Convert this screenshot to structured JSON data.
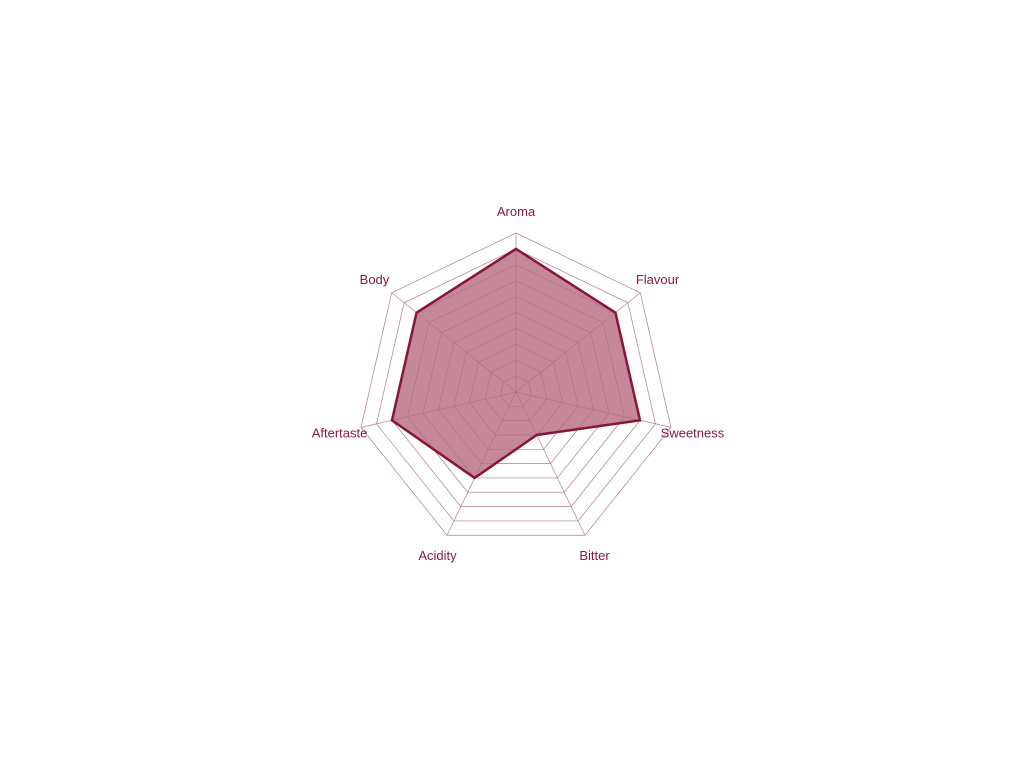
{
  "chart_data": {
    "type": "radar",
    "categories": [
      "Aroma",
      "Flavour",
      "Sweetness",
      "Bitter",
      "Acidity",
      "Aftertaste",
      "Body"
    ],
    "series": [
      {
        "values": [
          9,
          8,
          8,
          3,
          6,
          8,
          8
        ]
      }
    ],
    "rlim": [
      0,
      10
    ],
    "grid_levels": 10,
    "grid": true,
    "colors": {
      "line": "#8a1538",
      "fill": "#b56a80",
      "grid": "#b08080",
      "label": "#8a1a40"
    }
  }
}
